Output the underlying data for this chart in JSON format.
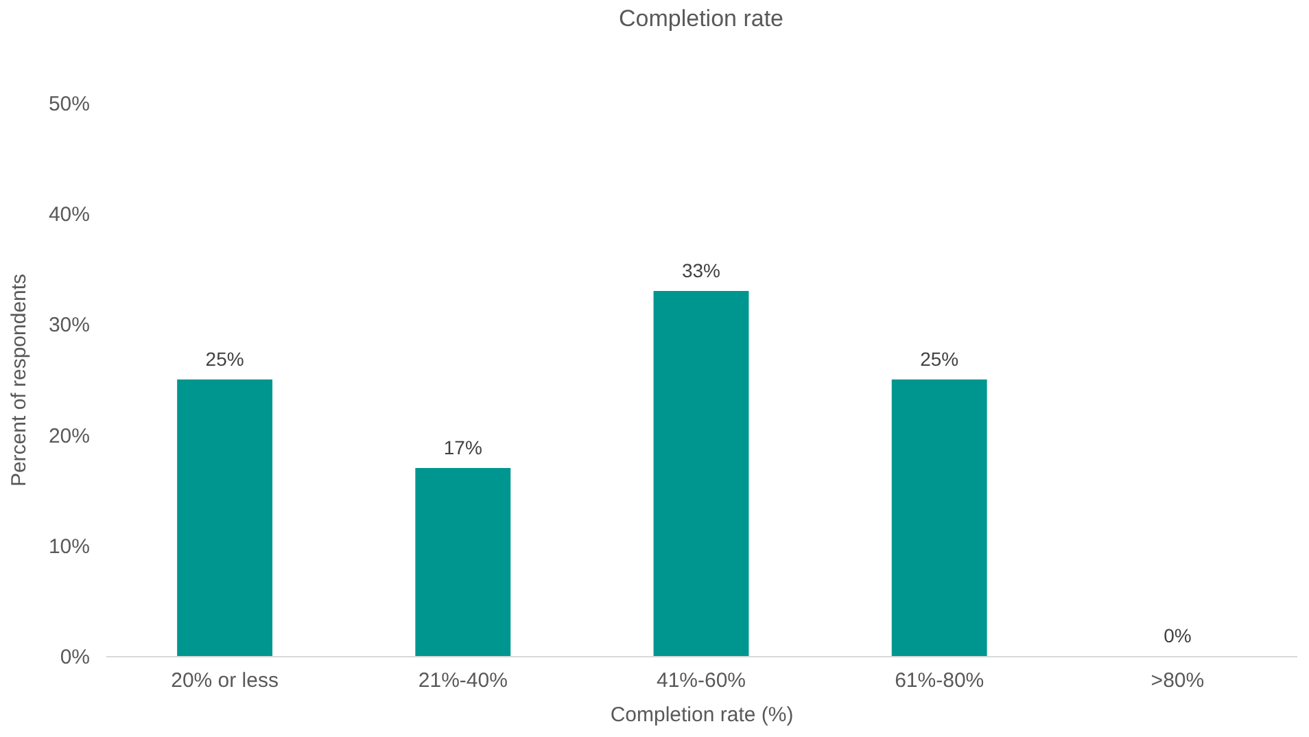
{
  "chart_data": {
    "type": "bar",
    "title": "Completion rate",
    "xlabel": "Completion rate (%)",
    "ylabel": "Percent of respondents",
    "categories": [
      "20% or less",
      "21%-40%",
      "41%-60%",
      "61%-80%",
      ">80%"
    ],
    "values": [
      25,
      17,
      33,
      25,
      0
    ],
    "value_labels": [
      "25%",
      "17%",
      "33%",
      "25%",
      "0%"
    ],
    "color": "#009690",
    "ylim": [
      0,
      50
    ],
    "yticks": [
      {
        "value": 0,
        "label": "0%"
      },
      {
        "value": 10,
        "label": "10%"
      },
      {
        "value": 20,
        "label": "20%"
      },
      {
        "value": 30,
        "label": "30%"
      },
      {
        "value": 40,
        "label": "40%"
      },
      {
        "value": 50,
        "label": "50%"
      }
    ],
    "grid": false
  }
}
